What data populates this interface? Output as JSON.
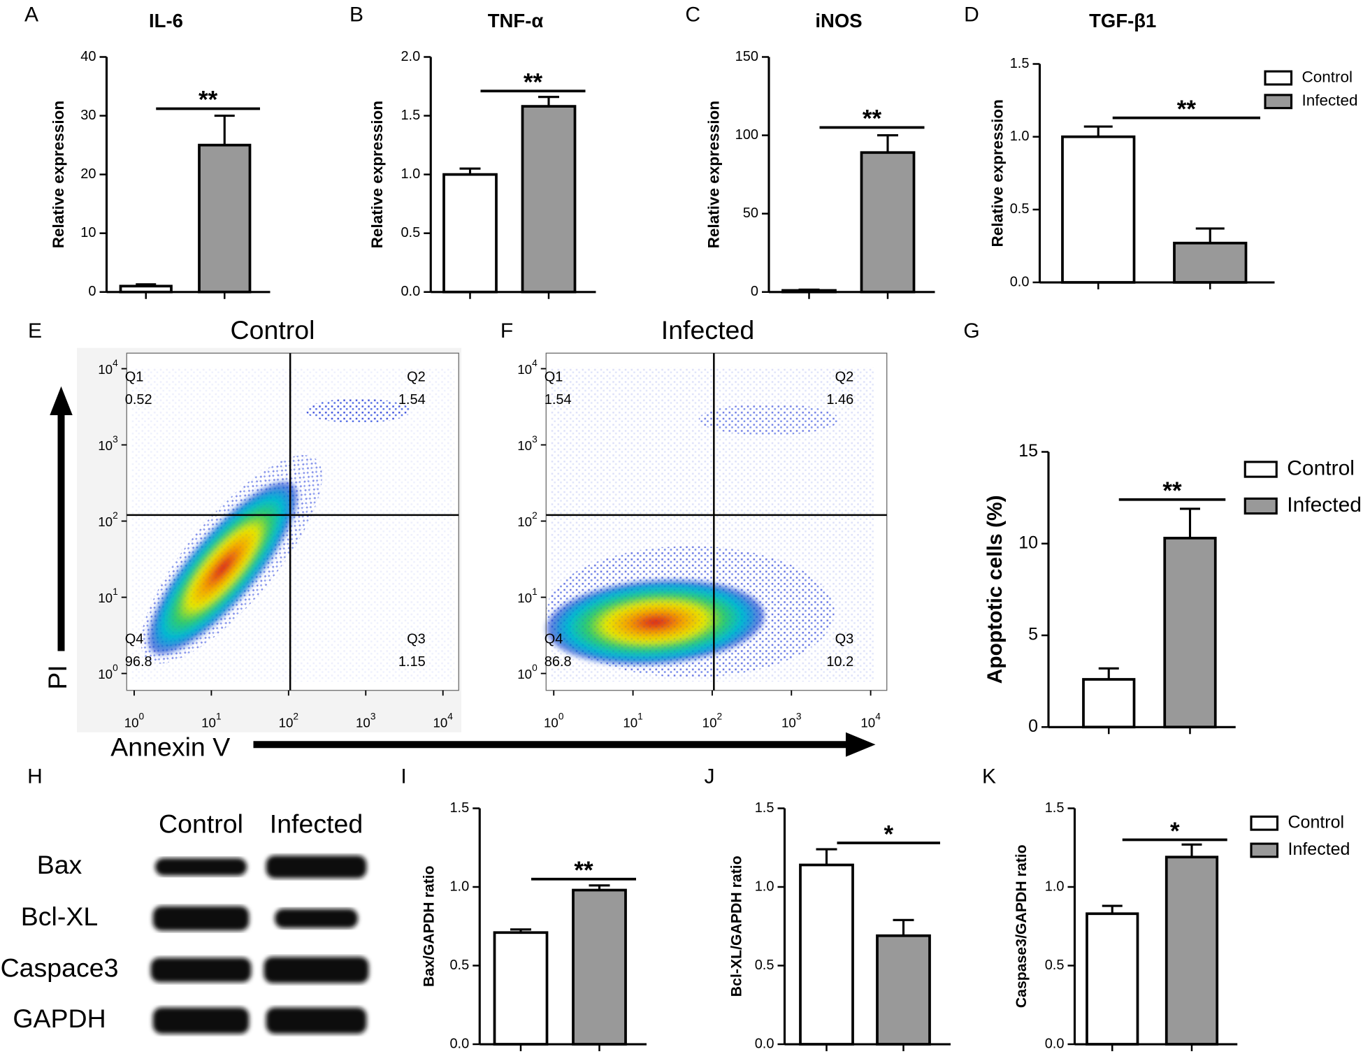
{
  "chart_data": [
    {
      "type": "bar",
      "panel": "A",
      "title": "IL-6",
      "ylabel": "Relative expression",
      "ylim": [
        0,
        40
      ],
      "yticks": [
        0,
        10,
        20,
        30,
        40
      ],
      "series": [
        {
          "color": "#ffffff",
          "values": [
            1
          ],
          "errors": [
            0.3
          ]
        },
        {
          "color": "#999999",
          "values": [
            25
          ],
          "errors": [
            5
          ]
        }
      ],
      "significance": {
        "label": "**",
        "y": 31.2
      }
    },
    {
      "type": "bar",
      "panel": "B",
      "title": "TNF-α",
      "ylabel": "Relative expression",
      "ylim": [
        0,
        2
      ],
      "yticks": [
        {
          "value": 0,
          "label": "0.0"
        },
        0.5,
        {
          "value": 1,
          "label": "1.0"
        },
        1.5,
        {
          "value": 2,
          "label": "2.0"
        }
      ],
      "series": [
        {
          "color": "#ffffff",
          "values": [
            1.0
          ],
          "errors": [
            0.05
          ]
        },
        {
          "color": "#999999",
          "values": [
            1.58
          ],
          "errors": [
            0.08
          ]
        }
      ],
      "significance": {
        "label": "**",
        "y": 1.71
      }
    },
    {
      "type": "bar",
      "panel": "C",
      "title": "iNOS",
      "ylabel": "Relative expression",
      "ylim": [
        0,
        150
      ],
      "yticks": [
        0,
        50,
        100,
        150
      ],
      "series": [
        {
          "color": "#ffffff",
          "values": [
            1
          ],
          "errors": [
            0.5
          ]
        },
        {
          "color": "#999999",
          "values": [
            89
          ],
          "errors": [
            11
          ]
        }
      ],
      "significance": {
        "label": "**",
        "y": 105
      }
    },
    {
      "type": "bar",
      "panel": "D",
      "title": "TGF-β1",
      "ylabel": "Relative expression",
      "ylim": [
        0,
        1.5
      ],
      "yticks": [
        {
          "value": 0,
          "label": "0.0"
        },
        0.5,
        {
          "value": 1,
          "label": "1.0"
        },
        1.5
      ],
      "series": [
        {
          "name": "Control",
          "color": "#ffffff",
          "values": [
            1.0
          ],
          "errors": [
            0.07
          ]
        },
        {
          "name": "Infected",
          "color": "#999999",
          "values": [
            0.27
          ],
          "errors": [
            0.1
          ]
        }
      ],
      "significance": {
        "label": "**",
        "y": 1.13
      },
      "legend": true
    },
    {
      "type": "flow",
      "panel": "E",
      "title": "Control",
      "xlabel": "Annexin V",
      "ylabel": "PI",
      "log_scale": true,
      "xlim": [
        0.8,
        16000
      ],
      "ylim": [
        0.6,
        16000
      ],
      "xticks": [
        {
          "value": 1,
          "label": "10",
          "sup": "0"
        },
        {
          "value": 10,
          "label": "10",
          "sup": "1"
        },
        {
          "value": 100,
          "label": "10",
          "sup": "2"
        },
        {
          "value": 1000,
          "label": "10",
          "sup": "3"
        },
        {
          "value": 10000,
          "label": "10",
          "sup": "4"
        }
      ],
      "yticks": [
        {
          "value": 1,
          "label": "10",
          "sup": "0"
        },
        {
          "value": 10,
          "label": "10",
          "sup": "1"
        },
        {
          "value": 100,
          "label": "10",
          "sup": "2"
        },
        {
          "value": 1000,
          "label": "10",
          "sup": "3"
        },
        {
          "value": 10000,
          "label": "10",
          "sup": "4"
        }
      ],
      "gate_x": 105,
      "gate_y": 120,
      "quadrants": [
        {
          "name": "Q1",
          "value": 0.52
        },
        {
          "name": "Q2",
          "value": 1.54
        },
        {
          "name": "Q3",
          "value": 1.15
        },
        {
          "name": "Q4",
          "value": 96.8
        }
      ]
    },
    {
      "type": "flow",
      "panel": "F",
      "title": "Infected",
      "log_scale": true,
      "xlim": [
        0.8,
        16000
      ],
      "ylim": [
        0.6,
        16000
      ],
      "xticks": [
        {
          "value": 1,
          "label": "10",
          "sup": "0"
        },
        {
          "value": 10,
          "label": "10",
          "sup": "1"
        },
        {
          "value": 100,
          "label": "10",
          "sup": "2"
        },
        {
          "value": 1000,
          "label": "10",
          "sup": "3"
        },
        {
          "value": 10000,
          "label": "10",
          "sup": "4"
        }
      ],
      "yticks": [
        {
          "value": 1,
          "label": "10",
          "sup": "0"
        },
        {
          "value": 10,
          "label": "10",
          "sup": "1"
        },
        {
          "value": 100,
          "label": "10",
          "sup": "2"
        },
        {
          "value": 1000,
          "label": "10",
          "sup": "3"
        },
        {
          "value": 10000,
          "label": "10",
          "sup": "4"
        }
      ],
      "gate_x": 105,
      "gate_y": 120,
      "quadrants": [
        {
          "name": "Q1",
          "value": 1.54
        },
        {
          "name": "Q2",
          "value": 1.46
        },
        {
          "name": "Q3",
          "value": 10.2
        },
        {
          "name": "Q4",
          "value": 86.8
        }
      ]
    },
    {
      "type": "bar",
      "panel": "G",
      "ylabel": "Apoptotic cells (%)",
      "ylim": [
        0,
        15
      ],
      "yticks": [
        0,
        5,
        10,
        15
      ],
      "series": [
        {
          "name": "Control",
          "color": "#ffffff",
          "values": [
            2.6
          ],
          "errors": [
            0.6
          ]
        },
        {
          "name": "Infected",
          "color": "#999999",
          "values": [
            10.3
          ],
          "errors": [
            1.6
          ]
        }
      ],
      "significance": {
        "label": "**",
        "y": 12.4
      },
      "legend": true
    },
    {
      "type": "blot",
      "panel": "H",
      "columns": [
        "Control",
        "Infected"
      ],
      "rows": [
        "Bax",
        "Bcl-XL",
        "Caspace3",
        "GAPDH"
      ]
    },
    {
      "type": "bar",
      "panel": "I",
      "ylabel": "Bax/GAPDH ratio",
      "ylim": [
        0,
        1.5
      ],
      "yticks": [
        {
          "value": 0,
          "label": "0.0"
        },
        0.5,
        {
          "value": 1,
          "label": "1.0"
        },
        1.5
      ],
      "series": [
        {
          "color": "#ffffff",
          "values": [
            0.71
          ],
          "errors": [
            0.02
          ]
        },
        {
          "color": "#999999",
          "values": [
            0.98
          ],
          "errors": [
            0.03
          ]
        }
      ],
      "significance": {
        "label": "**",
        "y": 1.05
      }
    },
    {
      "type": "bar",
      "panel": "J",
      "ylabel": "Bcl-XL/GAPDH ratio",
      "ylim": [
        0,
        1.5
      ],
      "yticks": [
        {
          "value": 0,
          "label": "0.0"
        },
        0.5,
        {
          "value": 1,
          "label": "1.0"
        },
        1.5
      ],
      "series": [
        {
          "color": "#ffffff",
          "values": [
            1.14
          ],
          "errors": [
            0.1
          ]
        },
        {
          "color": "#999999",
          "values": [
            0.69
          ],
          "errors": [
            0.1
          ]
        }
      ],
      "significance": {
        "label": "*",
        "y": 1.28
      }
    },
    {
      "type": "bar",
      "panel": "K",
      "ylabel": "Caspase3/GAPDH ratio",
      "ylim": [
        0,
        1.5
      ],
      "yticks": [
        {
          "value": 0,
          "label": "0.0"
        },
        0.5,
        {
          "value": 1,
          "label": "1.0"
        },
        1.5
      ],
      "series": [
        {
          "name": "Control",
          "color": "#ffffff",
          "values": [
            0.83
          ],
          "errors": [
            0.05
          ]
        },
        {
          "name": "Infected",
          "color": "#999999",
          "values": [
            1.19
          ],
          "errors": [
            0.08
          ]
        }
      ],
      "significance": {
        "label": "*",
        "y": 1.3
      },
      "legend": true
    }
  ]
}
